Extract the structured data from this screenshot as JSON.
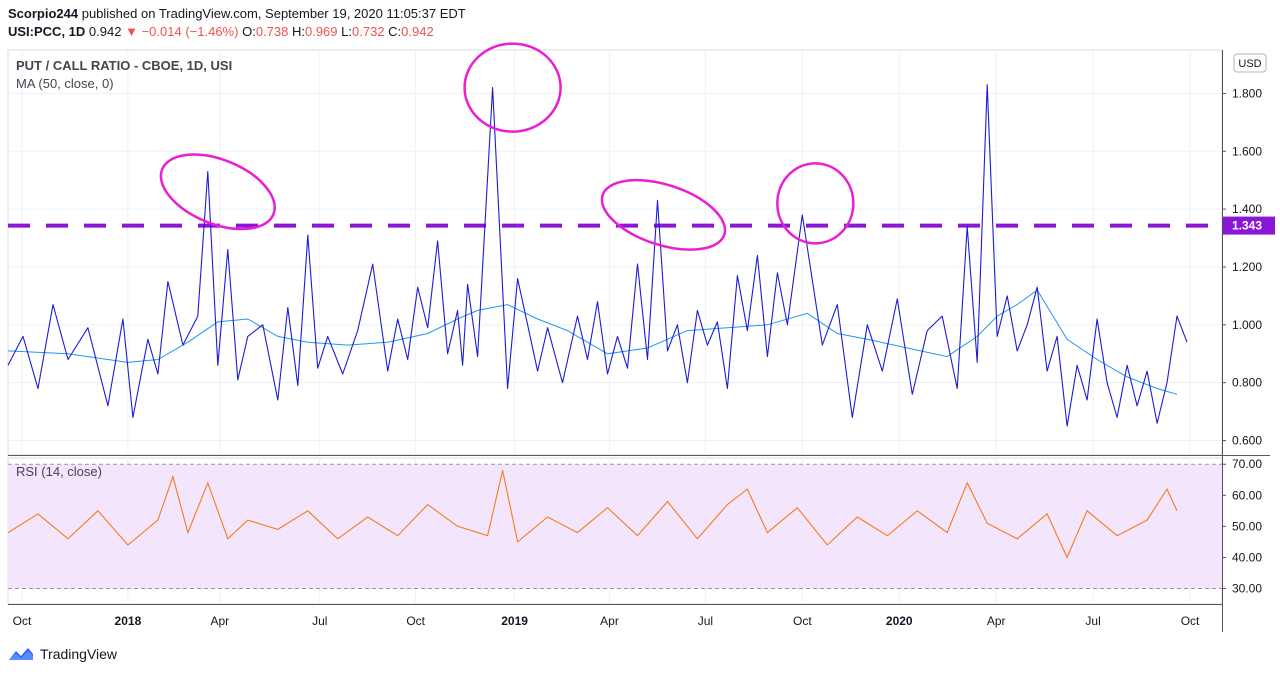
{
  "header": {
    "author": "Scorpio244",
    "published_text": "published on TradingView.com, September 19, 2020 11:05:37 EDT",
    "symbol": "USI:PCC, 1D",
    "last": "0.942",
    "change": "−0.014 (−1.46%)",
    "o_label": "O:",
    "o_val": "0.738",
    "h_label": "H:",
    "h_val": "0.969",
    "l_label": "L:",
    "l_val": "0.732",
    "c_label": "C:",
    "c_val": "0.942"
  },
  "footer": {
    "brand": "TradingView"
  },
  "colors": {
    "price": "#1c1cd6",
    "ma": "#2196f3",
    "rsi": "#f57c1f",
    "rsi_band": "#f3e5fb",
    "annotation": "#e91ed5",
    "dashed": "#8a17d6"
  },
  "chart_data": {
    "type": "line",
    "main_pane": {
      "title": "PUT / CALL RATIO - CBOE, 1D, USI",
      "indicator_label": "MA (50, close, 0)",
      "currency_badge": "USD",
      "ylim": [
        0.55,
        1.95
      ],
      "y_ticks": [
        "1.800",
        "1.600",
        "1.400",
        "1.200",
        "1.000",
        "0.800",
        "0.600"
      ],
      "y_tick_values": [
        1.8,
        1.6,
        1.4,
        1.2,
        1.0,
        0.8,
        0.6
      ],
      "horizontal_line": {
        "value": 1.343,
        "label": "1.343",
        "style": "dashed"
      },
      "series": [
        {
          "x": [
            0,
            15,
            30,
            45,
            60,
            80,
            100,
            115,
            125,
            140,
            150,
            160,
            175,
            190,
            200,
            210,
            220,
            230,
            240,
            255,
            270,
            280,
            290,
            300,
            310,
            320,
            335,
            350,
            365,
            380,
            390,
            400,
            410,
            420,
            430,
            440,
            450,
            455,
            460,
            470,
            485,
            500,
            510,
            520,
            530,
            540,
            555,
            570,
            580,
            590,
            600,
            610,
            620,
            630,
            640,
            650,
            660,
            670,
            680,
            690,
            700,
            710,
            720,
            730,
            740,
            750,
            760,
            770,
            780,
            795,
            815,
            830,
            845,
            860,
            875,
            890,
            905,
            920,
            935,
            950,
            960,
            970,
            980,
            990,
            1000,
            1010,
            1020,
            1030,
            1040,
            1050,
            1060,
            1070,
            1080,
            1090,
            1100,
            1110,
            1120,
            1130,
            1140,
            1150,
            1160,
            1170,
            1180
          ],
          "y": [
            0.86,
            0.96,
            0.78,
            1.07,
            0.88,
            0.99,
            0.72,
            1.02,
            0.68,
            0.95,
            0.83,
            1.15,
            0.93,
            1.03,
            1.53,
            0.86,
            1.26,
            0.81,
            0.96,
            1.0,
            0.74,
            1.06,
            0.79,
            1.31,
            0.85,
            0.96,
            0.83,
            0.98,
            1.21,
            0.84,
            1.02,
            0.88,
            1.13,
            0.99,
            1.29,
            0.9,
            1.05,
            0.86,
            1.14,
            0.89,
            1.82,
            0.78,
            1.16,
            1.0,
            0.84,
            0.99,
            0.8,
            1.03,
            0.88,
            1.08,
            0.83,
            0.96,
            0.85,
            1.21,
            0.88,
            1.43,
            0.91,
            1.0,
            0.8,
            1.05,
            0.93,
            1.01,
            0.78,
            1.17,
            0.98,
            1.24,
            0.89,
            1.18,
            1.0,
            1.38,
            0.93,
            1.07,
            0.68,
            1.0,
            0.84,
            1.09,
            0.76,
            0.98,
            1.03,
            0.78,
            1.34,
            0.87,
            1.83,
            0.96,
            1.1,
            0.91,
            1.0,
            1.13,
            0.84,
            0.96,
            0.65,
            0.86,
            0.74,
            1.02,
            0.8,
            0.68,
            0.86,
            0.72,
            0.84,
            0.66,
            0.8,
            1.03,
            0.94
          ]
        },
        {
          "x": [
            0,
            60,
            120,
            150,
            180,
            210,
            240,
            270,
            300,
            340,
            380,
            420,
            450,
            470,
            500,
            530,
            560,
            600,
            640,
            680,
            720,
            760,
            800,
            830,
            860,
            900,
            940,
            970,
            990,
            1010,
            1030,
            1060,
            1090,
            1120,
            1150,
            1170
          ],
          "y": [
            0.91,
            0.9,
            0.87,
            0.88,
            0.94,
            1.01,
            1.02,
            0.96,
            0.94,
            0.93,
            0.94,
            0.97,
            1.02,
            1.05,
            1.07,
            1.02,
            0.98,
            0.9,
            0.92,
            0.98,
            0.99,
            1.0,
            1.04,
            0.97,
            0.95,
            0.92,
            0.89,
            0.96,
            1.03,
            1.07,
            1.12,
            0.95,
            0.88,
            0.82,
            0.78,
            0.76
          ]
        }
      ]
    },
    "rsi_pane": {
      "label": "RSI (14, close)",
      "ylim": [
        25,
        72
      ],
      "y_ticks": [
        "70.00",
        "60.00",
        "50.00",
        "40.00",
        "30.00"
      ],
      "y_tick_values": [
        70,
        60,
        50,
        40,
        30
      ],
      "band": [
        30,
        70
      ],
      "series": [
        {
          "x": [
            0,
            30,
            60,
            90,
            120,
            150,
            165,
            180,
            200,
            220,
            240,
            270,
            300,
            330,
            360,
            390,
            420,
            450,
            480,
            495,
            510,
            540,
            570,
            600,
            630,
            660,
            690,
            720,
            740,
            760,
            790,
            820,
            850,
            880,
            910,
            940,
            960,
            980,
            1010,
            1040,
            1060,
            1080,
            1110,
            1140,
            1160,
            1170
          ],
          "y": [
            48,
            54,
            46,
            55,
            44,
            52,
            66,
            48,
            64,
            46,
            52,
            49,
            55,
            46,
            53,
            47,
            57,
            50,
            47,
            68,
            45,
            53,
            48,
            56,
            47,
            58,
            46,
            57,
            62,
            48,
            56,
            44,
            53,
            47,
            55,
            48,
            64,
            51,
            46,
            54,
            40,
            55,
            47,
            52,
            62,
            55
          ]
        }
      ]
    },
    "x_axis": {
      "range": [
        0,
        1215
      ],
      "tick_labels": [
        "Oct",
        "2018",
        "Apr",
        "Jul",
        "Oct",
        "2019",
        "Apr",
        "Jul",
        "Oct",
        "2020",
        "Apr",
        "Jul",
        "Oct"
      ],
      "tick_positions": [
        14,
        120,
        212,
        312,
        408,
        507,
        602,
        698,
        795,
        892,
        989,
        1086,
        1183
      ],
      "bold_ticks": [
        "2018",
        "2019",
        "2020"
      ]
    },
    "annotations": [
      {
        "shape": "ellipse",
        "cx": 210,
        "cy": 1.46,
        "rx": 60,
        "ry": 32,
        "rotation": 22
      },
      {
        "shape": "ellipse",
        "cx": 505,
        "cy": 1.82,
        "rx": 48,
        "ry": 44,
        "rotation": 0
      },
      {
        "shape": "ellipse",
        "cx": 656,
        "cy": 1.38,
        "rx": 64,
        "ry": 30,
        "rotation": 18
      },
      {
        "shape": "ellipse",
        "cx": 808,
        "cy": 1.42,
        "rx": 38,
        "ry": 40,
        "rotation": 0
      }
    ]
  }
}
